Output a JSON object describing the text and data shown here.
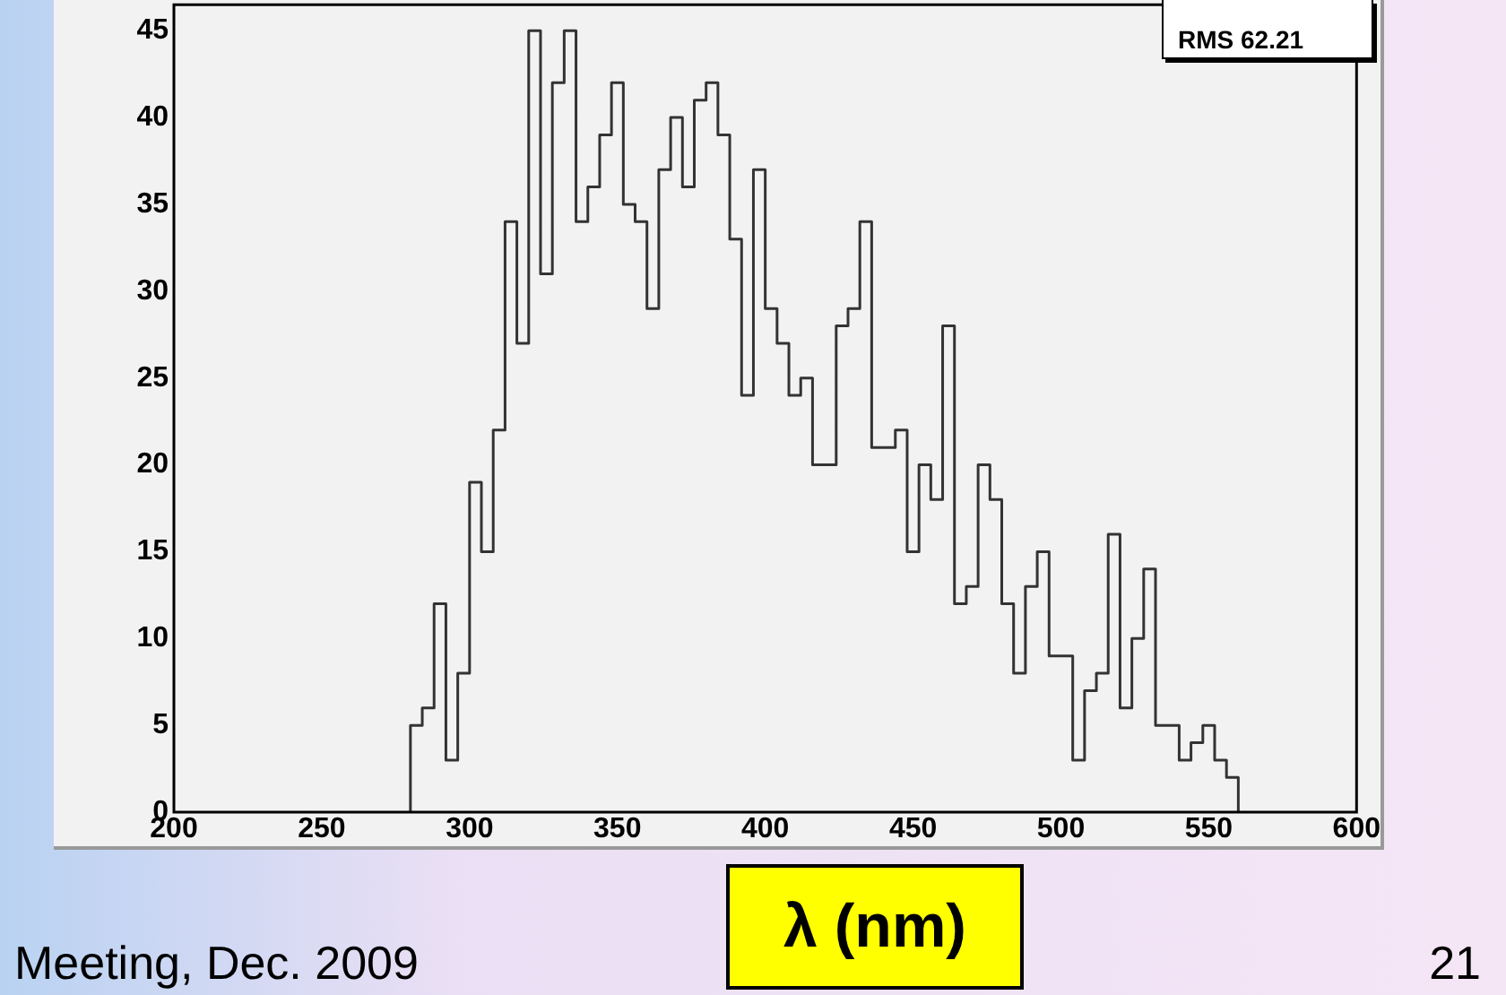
{
  "chart_data": {
    "type": "histogram",
    "xlabel": "λ (nm)",
    "bins": [
      280,
      284,
      288,
      292,
      296,
      300,
      304,
      308,
      312,
      316,
      320,
      324,
      328,
      332,
      336,
      340,
      344,
      348,
      352,
      356,
      360,
      364,
      368,
      372,
      376,
      380,
      384,
      388,
      392,
      396,
      400,
      404,
      408,
      412,
      416,
      420,
      424,
      428,
      432,
      436,
      440,
      444,
      448,
      452,
      456,
      460,
      464,
      468,
      472,
      476,
      480,
      484,
      488,
      492,
      496,
      500,
      504,
      508,
      512,
      516,
      520,
      524,
      528,
      532,
      536,
      540,
      544,
      548,
      552,
      556,
      560
    ],
    "values": [
      5,
      6,
      12,
      3,
      8,
      19,
      15,
      22,
      34,
      27,
      45,
      31,
      42,
      45,
      34,
      36,
      39,
      42,
      35,
      34,
      29,
      37,
      40,
      36,
      41,
      42,
      39,
      33,
      24,
      37,
      29,
      27,
      24,
      25,
      20,
      20,
      28,
      29,
      34,
      21,
      21,
      22,
      15,
      20,
      18,
      28,
      12,
      13,
      20,
      18,
      12,
      8,
      13,
      15,
      9,
      9,
      3,
      7,
      8,
      16,
      6,
      10,
      14,
      5,
      5,
      3,
      4,
      5,
      3,
      2
    ],
    "color": "#333333",
    "xlim": [
      200,
      600
    ],
    "xticks": [
      200,
      250,
      300,
      350,
      400,
      450,
      500,
      550,
      600
    ],
    "ylim": [
      0,
      46.5
    ],
    "yticks": [
      0,
      5,
      10,
      15,
      20,
      25,
      30,
      35,
      40,
      45
    ],
    "grid": false,
    "legend": false,
    "annotations": [
      "RMS 62.21",
      "Meeting, Dec. 2009",
      "21"
    ]
  }
}
